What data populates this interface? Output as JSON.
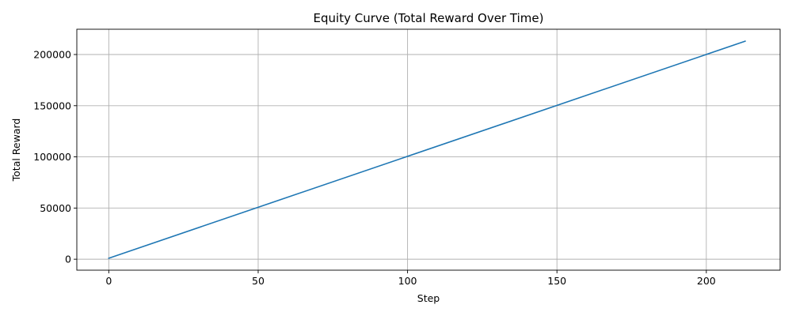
{
  "chart_data": {
    "type": "line",
    "title": "Equity Curve (Total Reward Over Time)",
    "xlabel": "Step",
    "ylabel": "Total Reward",
    "xlim": [
      -10.7,
      224.7
    ],
    "ylim": [
      -10700,
      224700
    ],
    "xticks": [
      0,
      50,
      100,
      150,
      200
    ],
    "yticks": [
      0,
      50000,
      100000,
      150000,
      200000
    ],
    "grid": true,
    "series": [
      {
        "color": "#1f77b4",
        "x": [
          0,
          213
        ],
        "y": [
          1000,
          213000
        ]
      }
    ]
  }
}
